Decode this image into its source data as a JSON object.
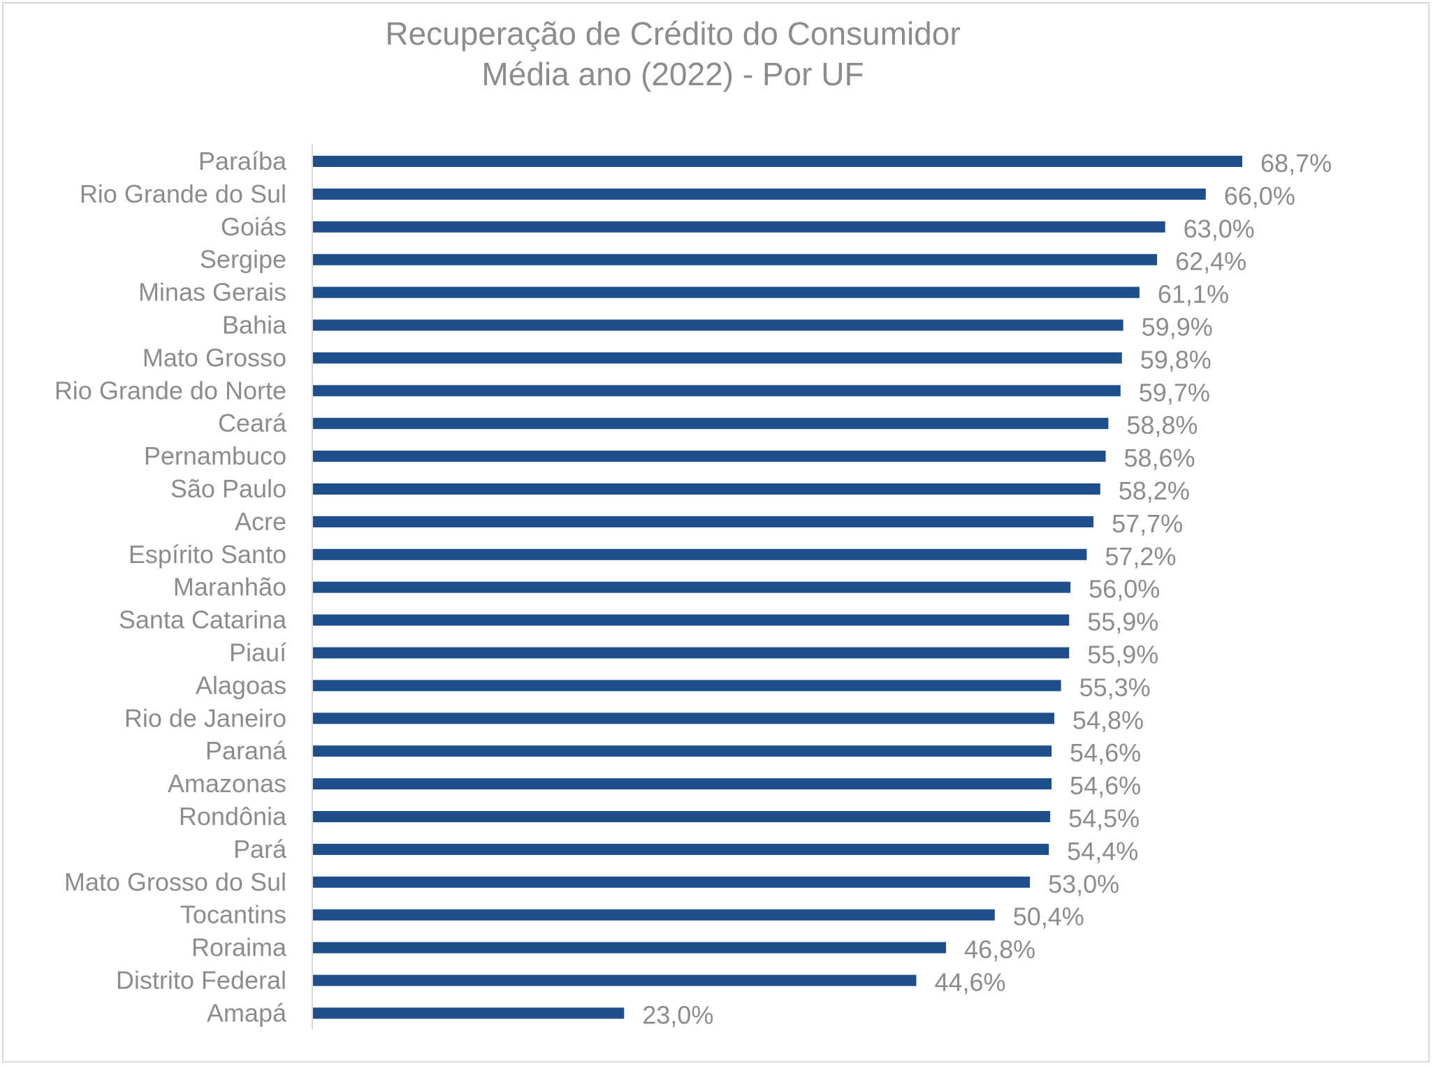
{
  "chart_data": {
    "type": "bar",
    "orientation": "horizontal",
    "title": "Recuperação de Crédito do Consumidor",
    "subtitle": "Média ano (2022) - Por UF",
    "categories": [
      "Paraíba",
      "Rio Grande do Sul",
      "Goiás",
      "Sergipe",
      "Minas Gerais",
      "Bahia",
      "Mato Grosso",
      "Rio Grande do Norte",
      "Ceará",
      "Pernambuco",
      "São Paulo",
      "Acre",
      "Espírito Santo",
      "Maranhão",
      "Santa Catarina",
      "Piauí",
      "Alagoas",
      "Rio de Janeiro",
      "Paraná",
      "Amazonas",
      "Rondônia",
      "Pará",
      "Mato Grosso do Sul",
      "Tocantins",
      "Roraima",
      "Distrito Federal",
      "Amapá"
    ],
    "values": [
      68.7,
      66.0,
      63.0,
      62.4,
      61.1,
      59.9,
      59.8,
      59.7,
      58.8,
      58.6,
      58.2,
      57.7,
      57.2,
      56.0,
      55.9,
      55.9,
      55.3,
      54.8,
      54.6,
      54.6,
      54.5,
      54.4,
      53.0,
      50.4,
      46.8,
      44.6,
      23.0
    ],
    "value_labels": [
      "68,7%",
      "66,0%",
      "63,0%",
      "62,4%",
      "61,1%",
      "59,9%",
      "59,8%",
      "59,7%",
      "58,8%",
      "58,6%",
      "58,2%",
      "57,7%",
      "57,2%",
      "56,0%",
      "55,9%",
      "55,9%",
      "55,3%",
      "54,8%",
      "54,6%",
      "54,6%",
      "54,5%",
      "54,4%",
      "53,0%",
      "50,4%",
      "46,8%",
      "44,6%",
      "23,0%"
    ],
    "xlim": [
      0,
      70
    ],
    "grid": false,
    "legend": "none",
    "bar_color": "#1f4e8c"
  }
}
